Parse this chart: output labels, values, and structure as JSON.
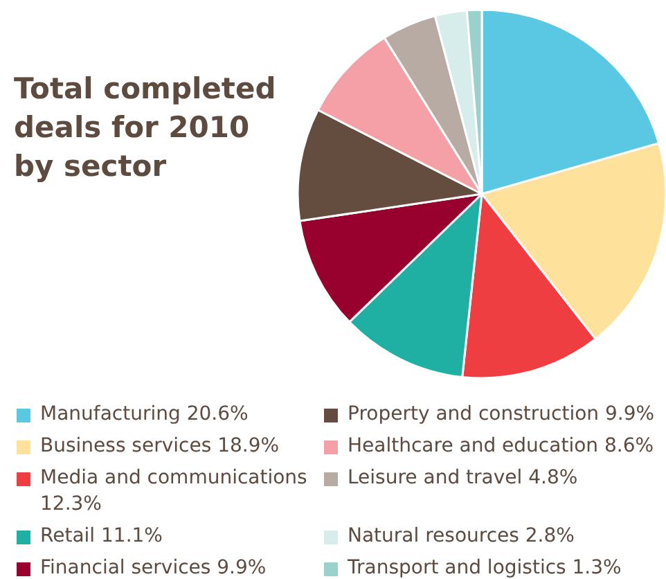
{
  "chart_data": {
    "type": "pie",
    "title": "Total completed deals for 2010 by sector",
    "categories": [
      "Manufacturing",
      "Business services",
      "Media and communications",
      "Retail",
      "Financial services",
      "Property and construction",
      "Healthcare and education",
      "Leisure and travel",
      "Natural resources",
      "Transport and logistics"
    ],
    "values": [
      20.6,
      18.9,
      12.3,
      11.1,
      9.9,
      9.9,
      8.6,
      4.8,
      2.8,
      1.3
    ],
    "value_labels": [
      "20.6%",
      "18.9%",
      "12.3%",
      "11.1%",
      "9.9%",
      "9.9%",
      "8.6%",
      "4.8%",
      "2.8%",
      "1.3%"
    ],
    "colors": [
      "#5bc8e3",
      "#fee29c",
      "#ef3e42",
      "#20b0a3",
      "#98002e",
      "#644d3e",
      "#f4a0a6",
      "#b8aba4",
      "#d6edeb",
      "#9ad1ca"
    ],
    "legend": "bottom"
  }
}
